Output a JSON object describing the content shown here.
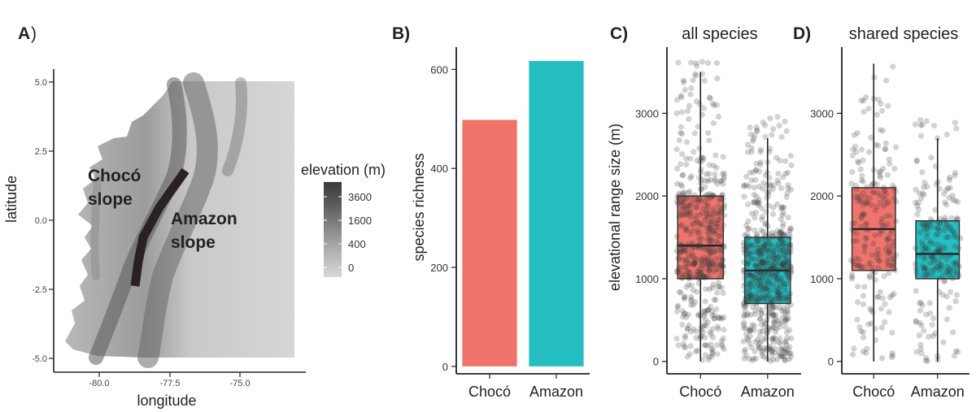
{
  "chart_data": [
    {
      "panel": "A",
      "panel_label": "A",
      "panel_label_suffix": ")",
      "type": "map",
      "xlabel": "longitude",
      "ylabel": "latitude",
      "x_ticks": [
        "-80.0",
        "-77.5",
        "-75.0"
      ],
      "y_ticks": [
        "5.0",
        "2.5",
        "0.0",
        "-2.5",
        "-5.0"
      ],
      "legend": {
        "title": "elevation (m)",
        "labels": [
          "3600",
          "1600",
          "400",
          "0"
        ],
        "colors": [
          "#3a3a3a",
          "#6a6a6a",
          "#9a9a9a",
          "#c4c4c4",
          "#dcdcdc"
        ]
      },
      "annotations": {
        "choco_line1": "Chocó",
        "choco_line2": "slope",
        "amazon_line1": "Amazon",
        "amazon_line2": "slope"
      },
      "transect_color": "#2a2222"
    },
    {
      "panel": "B",
      "panel_label": "B)",
      "type": "bar",
      "categories": [
        "Chocó",
        "Amazon"
      ],
      "values": [
        498,
        617
      ],
      "colors": [
        "#F0746C",
        "#25BEC1"
      ],
      "ylabel": "species richness",
      "ylim": [
        -15,
        645
      ],
      "y_ticks": [
        0,
        200,
        400,
        600
      ]
    },
    {
      "panel": "C",
      "panel_label": "C)",
      "type": "box",
      "title": "all species",
      "ylabel": "elevational range size (m)",
      "categories": [
        "Chocó",
        "Amazon"
      ],
      "colors": [
        "#F0746C",
        "#25BEC1"
      ],
      "ylim": [
        -150,
        3800
      ],
      "y_ticks": [
        0,
        1000,
        2000,
        3000
      ],
      "boxes": [
        {
          "q1": 1000,
          "median": 1400,
          "q3": 2000,
          "whisker_low": 0,
          "whisker_high": 3500,
          "n_points": 498,
          "max_point": 3650
        },
        {
          "q1": 700,
          "median": 1100,
          "q3": 1500,
          "whisker_low": 0,
          "whisker_high": 2700,
          "n_points": 617,
          "max_point": 2980
        }
      ]
    },
    {
      "panel": "D",
      "panel_label": "D)",
      "type": "box",
      "title": "shared species",
      "categories": [
        "Chocó",
        "Amazon"
      ],
      "colors": [
        "#F0746C",
        "#25BEC1"
      ],
      "ylim": [
        -150,
        3800
      ],
      "y_ticks": [
        0,
        1000,
        2000,
        3000
      ],
      "boxes": [
        {
          "q1": 1100,
          "median": 1600,
          "q3": 2100,
          "whisker_low": 0,
          "whisker_high": 3600,
          "n_points": 220,
          "max_point": 3650
        },
        {
          "q1": 1000,
          "median": 1300,
          "q3": 1700,
          "whisker_low": 0,
          "whisker_high": 2700,
          "n_points": 220,
          "max_point": 2950
        }
      ]
    }
  ]
}
